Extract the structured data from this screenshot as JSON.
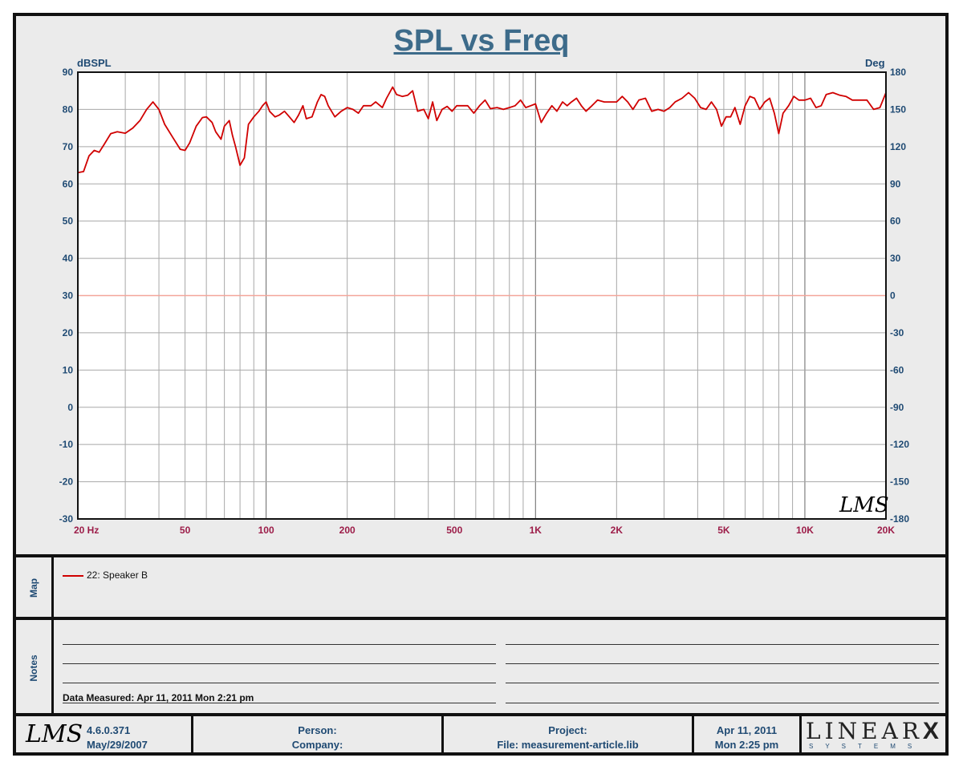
{
  "chart_data": {
    "type": "line",
    "title": "SPL vs Freq",
    "ylabel": "dBSPL",
    "y2label": "Deg",
    "x_scale": "log",
    "xlim": [
      20,
      20000
    ],
    "ylim": [
      -30,
      90
    ],
    "y2lim": [
      -180,
      180
    ],
    "x_ticks": [
      {
        "value": 20,
        "label": "20  Hz"
      },
      {
        "value": 50,
        "label": "50"
      },
      {
        "value": 100,
        "label": "100"
      },
      {
        "value": 200,
        "label": "200"
      },
      {
        "value": 500,
        "label": "500"
      },
      {
        "value": 1000,
        "label": "1K"
      },
      {
        "value": 2000,
        "label": "2K"
      },
      {
        "value": 5000,
        "label": "5K"
      },
      {
        "value": 10000,
        "label": "10K"
      },
      {
        "value": 20000,
        "label": "20K"
      }
    ],
    "y_ticks": [
      90,
      80,
      70,
      60,
      50,
      40,
      30,
      20,
      10,
      0,
      -10,
      -20,
      -30
    ],
    "y2_ticks": [
      180,
      150,
      120,
      90,
      60,
      30,
      0,
      -30,
      -60,
      -90,
      -120,
      -150,
      -180
    ],
    "grid": true,
    "reference_line": {
      "y": 30,
      "color": "#f4a59a"
    },
    "series": [
      {
        "name": "22: Speaker B",
        "color": "#d00000",
        "points": [
          [
            20,
            63
          ],
          [
            21,
            63.3
          ],
          [
            22,
            67.5
          ],
          [
            23,
            69
          ],
          [
            24,
            68.5
          ],
          [
            25,
            70.5
          ],
          [
            26.5,
            73.5
          ],
          [
            28,
            74
          ],
          [
            30,
            73.6
          ],
          [
            32,
            75
          ],
          [
            34,
            77
          ],
          [
            36,
            80
          ],
          [
            38,
            82
          ],
          [
            40,
            80
          ],
          [
            42,
            76
          ],
          [
            45,
            72.5
          ],
          [
            48,
            69.3
          ],
          [
            50,
            69
          ],
          [
            52,
            71
          ],
          [
            55,
            75.5
          ],
          [
            58,
            77.8
          ],
          [
            60,
            78
          ],
          [
            63,
            76.5
          ],
          [
            65,
            74
          ],
          [
            68,
            72
          ],
          [
            70,
            75.5
          ],
          [
            73,
            77
          ],
          [
            75,
            73
          ],
          [
            77,
            70
          ],
          [
            80,
            65
          ],
          [
            83,
            67
          ],
          [
            86,
            76
          ],
          [
            90,
            78
          ],
          [
            94,
            79.5
          ],
          [
            97,
            81
          ],
          [
            100,
            82
          ],
          [
            103,
            79.5
          ],
          [
            108,
            78
          ],
          [
            112,
            78.5
          ],
          [
            117,
            79.5
          ],
          [
            122,
            78
          ],
          [
            127,
            76.5
          ],
          [
            132,
            78.5
          ],
          [
            137,
            81
          ],
          [
            141,
            77.5
          ],
          [
            148,
            78
          ],
          [
            155,
            82
          ],
          [
            160,
            84
          ],
          [
            165,
            83.5
          ],
          [
            170,
            81
          ],
          [
            180,
            78
          ],
          [
            190,
            79.5
          ],
          [
            200,
            80.5
          ],
          [
            210,
            80
          ],
          [
            220,
            79
          ],
          [
            230,
            81
          ],
          [
            245,
            81
          ],
          [
            255,
            82
          ],
          [
            270,
            80.5
          ],
          [
            280,
            83
          ],
          [
            295,
            86
          ],
          [
            305,
            84
          ],
          [
            320,
            83.5
          ],
          [
            335,
            83.8
          ],
          [
            350,
            85
          ],
          [
            365,
            79.5
          ],
          [
            385,
            80
          ],
          [
            400,
            77.5
          ],
          [
            415,
            82
          ],
          [
            430,
            77
          ],
          [
            450,
            80
          ],
          [
            470,
            80.8
          ],
          [
            490,
            79.5
          ],
          [
            510,
            81
          ],
          [
            540,
            81
          ],
          [
            560,
            81
          ],
          [
            590,
            79
          ],
          [
            620,
            81
          ],
          [
            650,
            82.5
          ],
          [
            680,
            80.2
          ],
          [
            720,
            80.5
          ],
          [
            760,
            80
          ],
          [
            800,
            80.5
          ],
          [
            840,
            81
          ],
          [
            880,
            82.5
          ],
          [
            920,
            80.5
          ],
          [
            960,
            81
          ],
          [
            1000,
            81.5
          ],
          [
            1050,
            76.5
          ],
          [
            1100,
            79
          ],
          [
            1150,
            81
          ],
          [
            1200,
            79.5
          ],
          [
            1260,
            82
          ],
          [
            1310,
            81
          ],
          [
            1360,
            82
          ],
          [
            1420,
            83
          ],
          [
            1480,
            81
          ],
          [
            1540,
            79.5
          ],
          [
            1620,
            81
          ],
          [
            1700,
            82.5
          ],
          [
            1800,
            82
          ],
          [
            1900,
            82
          ],
          [
            2000,
            82
          ],
          [
            2100,
            83.5
          ],
          [
            2200,
            82
          ],
          [
            2300,
            80
          ],
          [
            2420,
            82.5
          ],
          [
            2560,
            83
          ],
          [
            2700,
            79.5
          ],
          [
            2850,
            80
          ],
          [
            3000,
            79.5
          ],
          [
            3150,
            80.5
          ],
          [
            3300,
            82
          ],
          [
            3500,
            83
          ],
          [
            3700,
            84.5
          ],
          [
            3900,
            83
          ],
          [
            4100,
            80.5
          ],
          [
            4300,
            80
          ],
          [
            4500,
            82
          ],
          [
            4700,
            80
          ],
          [
            4900,
            75.5
          ],
          [
            5100,
            78
          ],
          [
            5300,
            78
          ],
          [
            5500,
            80.5
          ],
          [
            5750,
            76
          ],
          [
            6000,
            81
          ],
          [
            6250,
            83.5
          ],
          [
            6500,
            83
          ],
          [
            6800,
            80
          ],
          [
            7100,
            82
          ],
          [
            7400,
            83
          ],
          [
            7700,
            79
          ],
          [
            8000,
            73.5
          ],
          [
            8300,
            79
          ],
          [
            8700,
            81
          ],
          [
            9100,
            83.5
          ],
          [
            9500,
            82.5
          ],
          [
            10000,
            82.5
          ],
          [
            10500,
            83
          ],
          [
            11000,
            80.5
          ],
          [
            11500,
            81
          ],
          [
            12000,
            84
          ],
          [
            12700,
            84.5
          ],
          [
            13500,
            83.8
          ],
          [
            14200,
            83.5
          ],
          [
            15000,
            82.5
          ],
          [
            16000,
            82.5
          ],
          [
            17000,
            82.5
          ],
          [
            18000,
            80
          ],
          [
            19000,
            80.5
          ],
          [
            20000,
            84.5
          ]
        ]
      }
    ]
  },
  "map": {
    "label": "Map",
    "legend": "22: Speaker B"
  },
  "notes": {
    "label": "Notes",
    "measured": "Data Measured: Apr 11, 2011  Mon  2:21 pm"
  },
  "footer": {
    "version": "4.6.0.371",
    "version_date": "May/29/2007",
    "person": "Person:",
    "company": "Company:",
    "project": "Project:",
    "file": "File: measurement-article.lib",
    "date": "Apr 11, 2011",
    "time": "Mon  2:25 pm",
    "brand_big": "LINEAR",
    "brand_x": "X",
    "brand_small": "SYSTEMS",
    "lms_logo": "LMS"
  }
}
